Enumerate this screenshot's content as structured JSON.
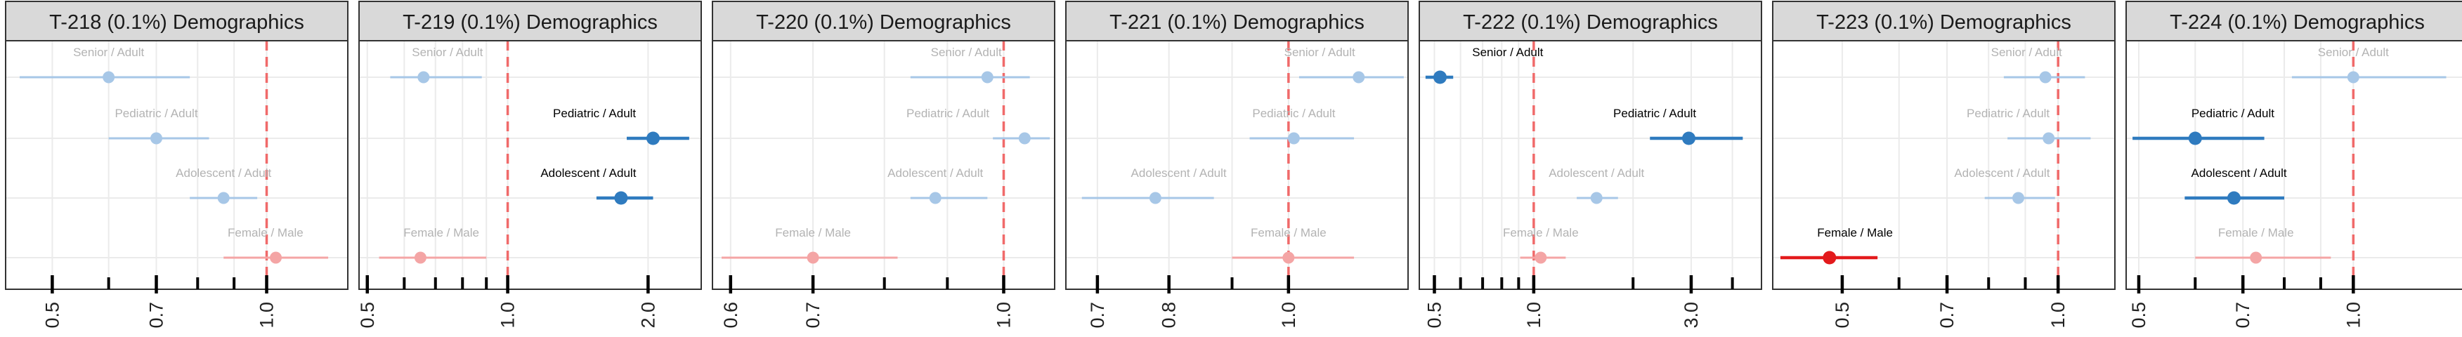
{
  "figure": {
    "type": "faceted-forest-plot",
    "x_scale": "log",
    "reference_line": 1.0,
    "colors": {
      "reference_line": "#f06a6a",
      "strip_background": "#d9d9d9",
      "panel_border": "#333333",
      "grid": "#ebebeb",
      "significant_blue": "#2f7bbf",
      "faded_blue": "#a7c7e7",
      "significant_red": "#e31a1c",
      "faded_red": "#f4a5a5",
      "faded_label": "#b3b3b3",
      "significant_label": "#000000"
    }
  },
  "chart_data": [
    {
      "type": "forest",
      "title": "T-218 (0.1%) Demographics",
      "xlim": [
        0.43,
        1.3
      ],
      "xticks": [
        0.5,
        0.7,
        1.0
      ],
      "minor_ticks": [
        0.6,
        0.8,
        0.9
      ],
      "rows": [
        {
          "label": "Senior / Adult",
          "estimate": 0.6,
          "lower": 0.45,
          "upper": 0.78,
          "significant": false,
          "group": "age"
        },
        {
          "label": "Pediatric / Adult",
          "estimate": 0.7,
          "lower": 0.6,
          "upper": 0.83,
          "significant": false,
          "group": "age"
        },
        {
          "label": "Adolescent / Adult",
          "estimate": 0.87,
          "lower": 0.78,
          "upper": 0.97,
          "significant": false,
          "group": "age"
        },
        {
          "label": "Female / Male",
          "estimate": 1.03,
          "lower": 0.87,
          "upper": 1.22,
          "significant": false,
          "group": "sex"
        }
      ]
    },
    {
      "type": "forest",
      "title": "T-219 (0.1%) Demographics",
      "xlim": [
        0.48,
        2.6
      ],
      "xticks": [
        0.5,
        1.0,
        2.0
      ],
      "minor_ticks": [
        0.6,
        0.7,
        0.8,
        0.9
      ],
      "rows": [
        {
          "label": "Senior / Adult",
          "estimate": 0.66,
          "lower": 0.56,
          "upper": 0.88,
          "significant": false,
          "group": "age"
        },
        {
          "label": "Pediatric / Adult",
          "estimate": 2.05,
          "lower": 1.8,
          "upper": 2.45,
          "significant": true,
          "group": "age"
        },
        {
          "label": "Adolescent / Adult",
          "estimate": 1.75,
          "lower": 1.55,
          "upper": 2.05,
          "significant": true,
          "group": "age"
        },
        {
          "label": "Female / Male",
          "estimate": 0.65,
          "lower": 0.53,
          "upper": 0.9,
          "significant": false,
          "group": "sex"
        }
      ]
    },
    {
      "type": "forest",
      "title": "T-220 (0.1%) Demographics",
      "xlim": [
        0.58,
        1.1
      ],
      "xticks": [
        0.6,
        0.7,
        1.0
      ],
      "minor_ticks": [
        0.8,
        0.9
      ],
      "rows": [
        {
          "label": "Senior / Adult",
          "estimate": 0.97,
          "lower": 0.84,
          "upper": 1.05,
          "significant": false,
          "group": "age"
        },
        {
          "label": "Pediatric / Adult",
          "estimate": 1.04,
          "lower": 0.98,
          "upper": 1.09,
          "significant": false,
          "group": "age"
        },
        {
          "label": "Adolescent / Adult",
          "estimate": 0.88,
          "lower": 0.84,
          "upper": 0.97,
          "significant": false,
          "group": "age"
        },
        {
          "label": "Female / Male",
          "estimate": 0.7,
          "lower": 0.59,
          "upper": 0.82,
          "significant": false,
          "group": "sex"
        }
      ]
    },
    {
      "type": "forest",
      "title": "T-221 (0.1%) Demographics",
      "xlim": [
        0.66,
        1.25
      ],
      "xticks": [
        0.7,
        0.8,
        1.0
      ],
      "minor_ticks": [
        0.9
      ],
      "rows": [
        {
          "label": "Senior / Adult",
          "estimate": 1.14,
          "lower": 1.02,
          "upper": 1.24,
          "significant": false,
          "group": "age"
        },
        {
          "label": "Pediatric / Adult",
          "estimate": 1.01,
          "lower": 0.93,
          "upper": 1.13,
          "significant": false,
          "group": "age"
        },
        {
          "label": "Adolescent / Adult",
          "estimate": 0.78,
          "lower": 0.68,
          "upper": 0.87,
          "significant": false,
          "group": "age"
        },
        {
          "label": "Female / Male",
          "estimate": 1.0,
          "lower": 0.9,
          "upper": 1.13,
          "significant": false,
          "group": "sex"
        }
      ]
    },
    {
      "type": "forest",
      "title": "T-222 (0.1%) Demographics",
      "xlim": [
        0.45,
        4.9
      ],
      "xticks": [
        0.5,
        1.0,
        3.0
      ],
      "minor_ticks": [
        0.6,
        0.7,
        0.8,
        0.9,
        2.0,
        4.0,
        5.0
      ],
      "rows": [
        {
          "label": "Senior / Adult",
          "estimate": 0.52,
          "lower": 0.47,
          "upper": 0.57,
          "significant": true,
          "group": "age"
        },
        {
          "label": "Pediatric / Adult",
          "estimate": 2.95,
          "lower": 2.25,
          "upper": 4.3,
          "significant": true,
          "group": "age"
        },
        {
          "label": "Adolescent / Adult",
          "estimate": 1.55,
          "lower": 1.35,
          "upper": 1.8,
          "significant": false,
          "group": "age"
        },
        {
          "label": "Female / Male",
          "estimate": 1.05,
          "lower": 0.91,
          "upper": 1.25,
          "significant": false,
          "group": "sex"
        }
      ]
    },
    {
      "type": "forest",
      "title": "T-223 (0.1%) Demographics",
      "xlim": [
        0.4,
        1.2
      ],
      "xticks": [
        0.5,
        0.7,
        1.0
      ],
      "minor_ticks": [
        0.6,
        0.8,
        0.9
      ],
      "rows": [
        {
          "label": "Senior / Adult",
          "estimate": 0.96,
          "lower": 0.84,
          "upper": 1.09,
          "significant": false,
          "group": "age"
        },
        {
          "label": "Pediatric / Adult",
          "estimate": 0.97,
          "lower": 0.85,
          "upper": 1.11,
          "significant": false,
          "group": "age"
        },
        {
          "label": "Adolescent / Adult",
          "estimate": 0.88,
          "lower": 0.79,
          "upper": 0.99,
          "significant": false,
          "group": "age"
        },
        {
          "label": "Female / Male",
          "estimate": 0.48,
          "lower": 0.41,
          "upper": 0.56,
          "significant": true,
          "group": "sex"
        }
      ]
    },
    {
      "type": "forest",
      "title": "T-224 (0.1%) Demographics",
      "xlim": [
        0.48,
        1.45
      ],
      "xticks": [
        0.5,
        0.7,
        1.0
      ],
      "minor_ticks": [
        0.6,
        0.8,
        0.9
      ],
      "rows": [
        {
          "label": "Senior / Adult",
          "estimate": 1.0,
          "lower": 0.82,
          "upper": 1.35,
          "significant": false,
          "group": "age"
        },
        {
          "label": "Pediatric / Adult",
          "estimate": 0.6,
          "lower": 0.49,
          "upper": 0.75,
          "significant": true,
          "group": "age"
        },
        {
          "label": "Adolescent / Adult",
          "estimate": 0.68,
          "lower": 0.58,
          "upper": 0.8,
          "significant": true,
          "group": "age"
        },
        {
          "label": "Female / Male",
          "estimate": 0.73,
          "lower": 0.6,
          "upper": 0.93,
          "significant": false,
          "group": "sex"
        }
      ]
    }
  ]
}
